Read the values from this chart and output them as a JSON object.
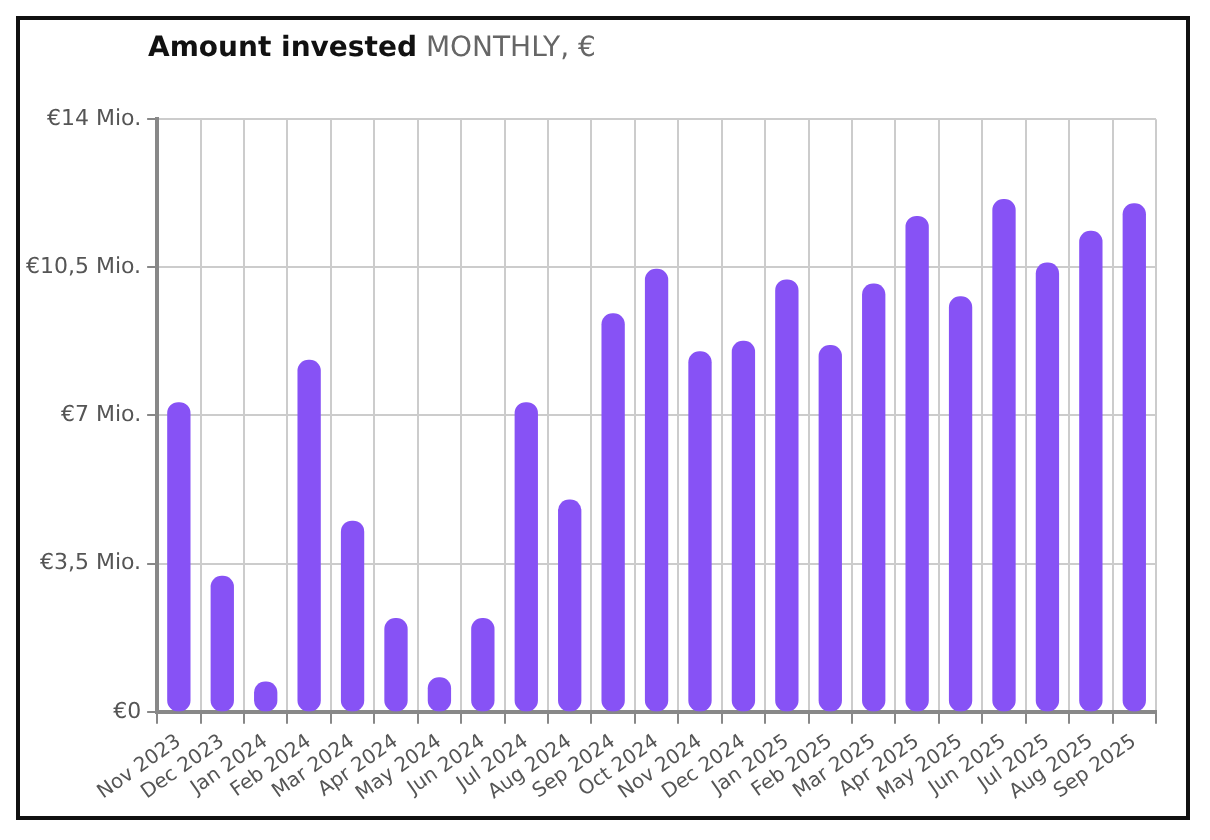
{
  "chart_data": {
    "type": "bar",
    "title": "Amount invested",
    "subtitle": "MONTHLY, €",
    "categories": [
      "Nov 2023",
      "Dec 2023",
      "Jan 2024",
      "Feb 2024",
      "Mar 2024",
      "Apr 2024",
      "May 2024",
      "Jun 2024",
      "Jul 2024",
      "Aug 2024",
      "Sep 2024",
      "Oct 2024",
      "Nov 2024",
      "Dec 2024",
      "Jan 2025",
      "Feb 2025",
      "Mar 2025",
      "Apr 2025",
      "May 2025",
      "Jun 2025",
      "Jul 2025",
      "Aug 2025",
      "Sep 2025"
    ],
    "values": [
      7.3,
      3.2,
      0.7,
      8.3,
      4.5,
      2.2,
      0.8,
      2.2,
      7.3,
      5.0,
      9.4,
      10.45,
      8.5,
      8.75,
      10.2,
      8.65,
      10.1,
      11.7,
      9.8,
      12.1,
      10.6,
      11.35,
      12.0
    ],
    "color": "#8752f5",
    "ylim": [
      0,
      14
    ],
    "yticks": [
      {
        "value": 0,
        "label": "€0"
      },
      {
        "value": 3.5,
        "label": "€3,5 Mio."
      },
      {
        "value": 7,
        "label": "€7 Mio."
      },
      {
        "value": 10.5,
        "label": "€10,5 Mio."
      },
      {
        "value": 14,
        "label": "€14 Mio."
      }
    ],
    "grid": true,
    "legend": false
  }
}
